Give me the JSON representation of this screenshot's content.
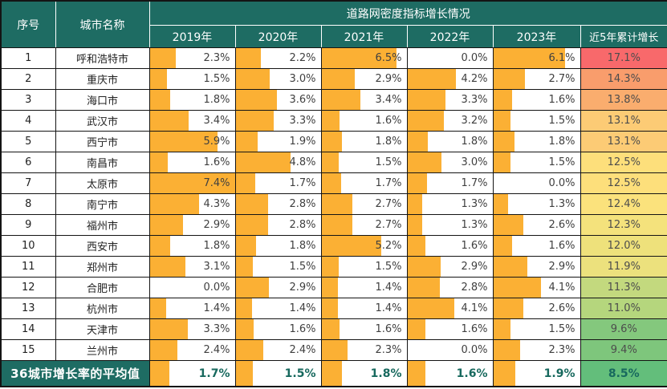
{
  "chart_data": {
    "type": "table",
    "title": "道路网密度指标增长情况",
    "columns": [
      "序号",
      "城市名称",
      "2019年",
      "2020年",
      "2021年",
      "2022年",
      "2023年",
      "近5年累计增长"
    ],
    "unit": "%",
    "bar_scale_max": 7.4,
    "layout": {
      "grid": true,
      "legend": false,
      "bars": "left-aligned data bars in year cells",
      "color_scale_column": "近5年累计增长"
    },
    "rows": [
      {
        "index": 1,
        "city": "呼和浩特市",
        "values": [
          2.3,
          2.2,
          6.5,
          0.0,
          6.1
        ],
        "cumulative": 17.1,
        "cumulative_color": "#F8696B"
      },
      {
        "index": 2,
        "city": "重庆市",
        "values": [
          1.5,
          3.0,
          2.9,
          4.2,
          2.7
        ],
        "cumulative": 14.3,
        "cumulative_color": "#F99D6C"
      },
      {
        "index": 3,
        "city": "海口市",
        "values": [
          1.8,
          3.6,
          3.4,
          3.3,
          1.6
        ],
        "cumulative": 13.8,
        "cumulative_color": "#FAAD6E"
      },
      {
        "index": 4,
        "city": "武汉市",
        "values": [
          3.4,
          3.3,
          1.6,
          3.2,
          1.5
        ],
        "cumulative": 13.1,
        "cumulative_color": "#FCCB75"
      },
      {
        "index": 5,
        "city": "西宁市",
        "values": [
          5.9,
          1.9,
          1.8,
          1.8,
          1.8
        ],
        "cumulative": 13.1,
        "cumulative_color": "#FCCB75"
      },
      {
        "index": 6,
        "city": "南昌市",
        "values": [
          1.6,
          4.8,
          1.5,
          3.0,
          1.5
        ],
        "cumulative": 12.5,
        "cumulative_color": "#FDDF7B"
      },
      {
        "index": 7,
        "city": "太原市",
        "values": [
          7.4,
          1.7,
          1.7,
          1.7,
          0.0
        ],
        "cumulative": 12.5,
        "cumulative_color": "#FDDF7B"
      },
      {
        "index": 8,
        "city": "南宁市",
        "values": [
          4.3,
          2.8,
          2.7,
          1.3,
          1.3
        ],
        "cumulative": 12.4,
        "cumulative_color": "#FBE27C"
      },
      {
        "index": 9,
        "city": "福州市",
        "values": [
          2.9,
          2.8,
          2.7,
          1.3,
          2.6
        ],
        "cumulative": 12.3,
        "cumulative_color": "#F4E27C"
      },
      {
        "index": 10,
        "city": "西安市",
        "values": [
          1.8,
          1.8,
          5.2,
          1.6,
          1.6
        ],
        "cumulative": 12.0,
        "cumulative_color": "#EEE17B"
      },
      {
        "index": 11,
        "city": "郑州市",
        "values": [
          3.1,
          1.5,
          1.5,
          2.9,
          2.9
        ],
        "cumulative": 11.9,
        "cumulative_color": "#ECE17D"
      },
      {
        "index": 12,
        "city": "合肥市",
        "values": [
          0.0,
          2.9,
          1.4,
          2.8,
          4.1
        ],
        "cumulative": 11.3,
        "cumulative_color": "#C3D97E"
      },
      {
        "index": 13,
        "city": "杭州市",
        "values": [
          1.4,
          1.4,
          1.4,
          4.1,
          2.6
        ],
        "cumulative": 11.0,
        "cumulative_color": "#B5D67D"
      },
      {
        "index": 14,
        "city": "天津市",
        "values": [
          3.3,
          1.6,
          1.6,
          1.6,
          1.5
        ],
        "cumulative": 9.6,
        "cumulative_color": "#84C87D"
      },
      {
        "index": 15,
        "city": "兰州市",
        "values": [
          2.4,
          2.4,
          2.3,
          0.0,
          2.3
        ],
        "cumulative": 9.4,
        "cumulative_color": "#7EC67C"
      }
    ],
    "summary_row": {
      "label": "36城市增长率的平均值",
      "values": [
        1.7,
        1.5,
        1.8,
        1.6,
        1.9
      ],
      "cumulative": 8.5,
      "cumulative_color": "#63BE7B"
    }
  },
  "colors": {
    "header_bg": "#1E6C63",
    "header_text": "#FFFFFF",
    "bar_fill": "#FBB034",
    "grid_line": "#141414",
    "body_text": "#3F3F3F",
    "summary_value_text": "#17695E"
  }
}
